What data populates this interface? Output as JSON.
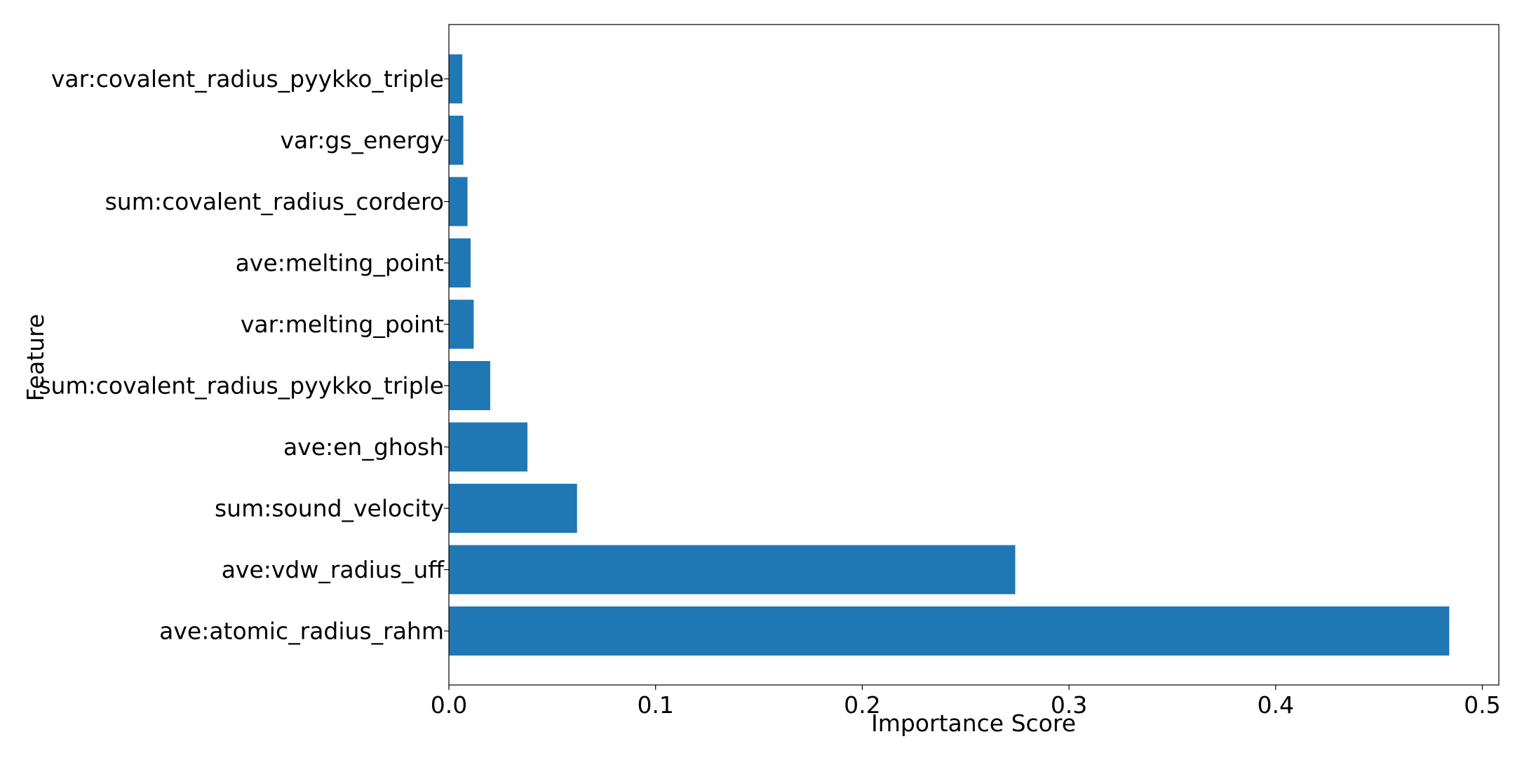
{
  "chart_data": {
    "type": "bar",
    "orientation": "horizontal",
    "title": "",
    "xlabel": "Importance Score",
    "ylabel": "Feature",
    "xlim": [
      0,
      0.508
    ],
    "xticks": [
      0.0,
      0.1,
      0.2,
      0.3,
      0.4,
      0.5
    ],
    "xtick_labels": [
      "0.0",
      "0.1",
      "0.2",
      "0.3",
      "0.4",
      "0.5"
    ],
    "grid": false,
    "bar_color": "#1f77b4",
    "categories": [
      "ave:atomic_radius_rahm",
      "ave:vdw_radius_uff",
      "sum:sound_velocity",
      "ave:en_ghosh",
      "sum:covalent_radius_pyykko_triple",
      "var:melting_point",
      "ave:melting_point",
      "sum:covalent_radius_cordero",
      "var:gs_energy",
      "var:covalent_radius_pyykko_triple"
    ],
    "values": [
      0.484,
      0.274,
      0.062,
      0.038,
      0.02,
      0.012,
      0.0105,
      0.009,
      0.007,
      0.0065
    ]
  }
}
